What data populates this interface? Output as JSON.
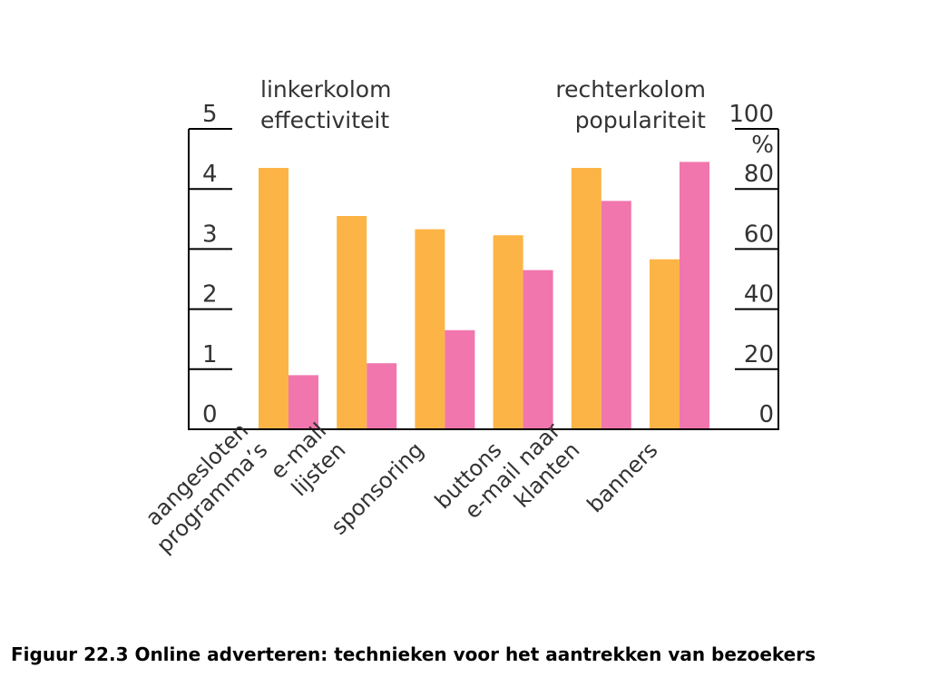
{
  "caption": "Figuur 22.3 Online adverteren: technieken voor het aantrekken van bezoekers",
  "chart_data": {
    "type": "bar",
    "left_header": [
      "linkerkolom",
      "effectiviteit"
    ],
    "right_header": [
      "rechterkolom",
      "populariteit"
    ],
    "left_axis": {
      "ticks": [
        "0",
        "1",
        "2",
        "3",
        "4",
        "5"
      ],
      "ylim": [
        0,
        5
      ]
    },
    "right_axis": {
      "ticks": [
        "0",
        "20",
        "40",
        "60",
        "80",
        "100"
      ],
      "unit": "%",
      "ylim": [
        0,
        100
      ]
    },
    "categories": [
      [
        "aangesloten",
        "programma’s"
      ],
      [
        "e-mail",
        "lijsten"
      ],
      [
        "sponsoring"
      ],
      [
        "buttons"
      ],
      [
        "e-mail naar",
        "klanten"
      ],
      [
        "banners"
      ]
    ],
    "series": [
      {
        "axis": "left",
        "color": "#fdb446",
        "values": [
          4.35,
          3.55,
          3.33,
          3.23,
          4.35,
          2.83
        ]
      },
      {
        "axis": "right",
        "color": "#f176ad",
        "values": [
          18,
          22,
          33,
          53,
          76,
          89
        ]
      }
    ],
    "colors": {
      "effectiveness": "#fdb446",
      "popularity": "#f176ad",
      "axis": "#000000",
      "text": "#333333"
    }
  }
}
